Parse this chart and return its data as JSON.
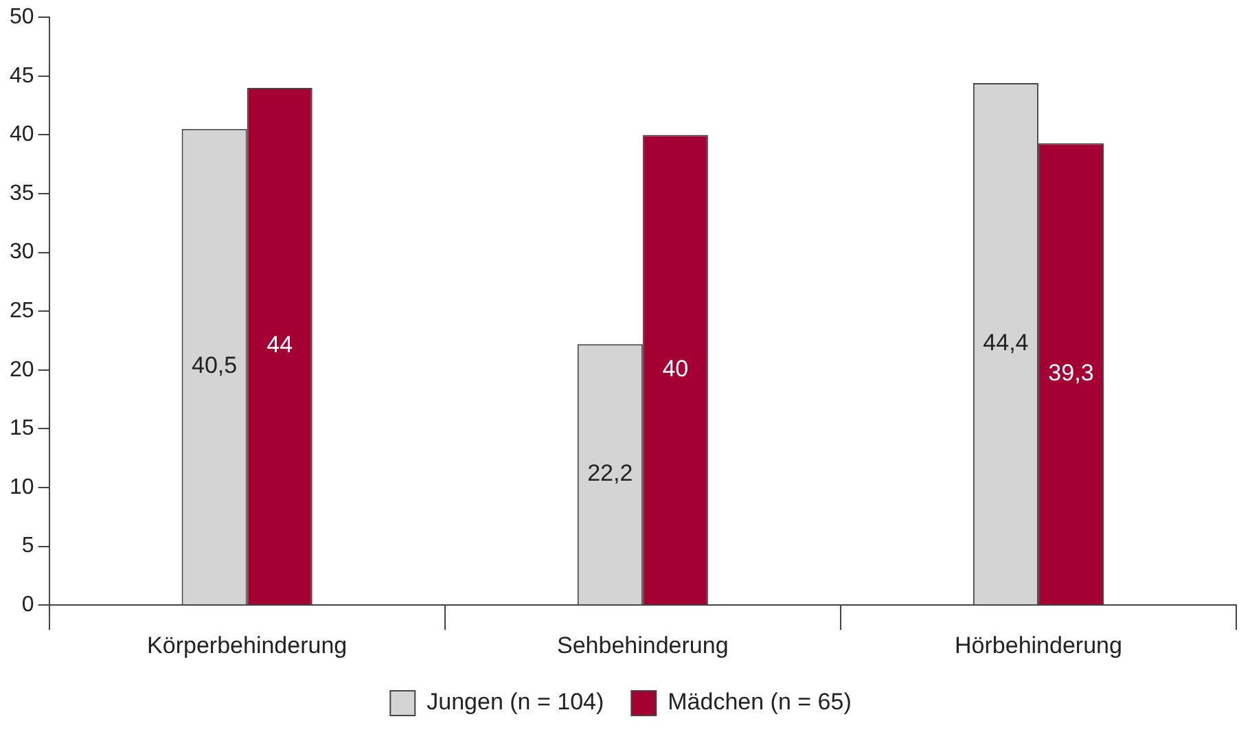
{
  "chart_data": {
    "type": "bar",
    "categories": [
      "Körperbehinderung",
      "Sehbehinderung",
      "Hörbehinderung"
    ],
    "series": [
      {
        "name": "Jungen (n = 104)",
        "color": "#d4d4d4",
        "values": [
          40.5,
          22.2,
          44.4
        ],
        "value_labels": [
          "40,5",
          "22,2",
          "44,4"
        ]
      },
      {
        "name": "Mädchen (n = 65)",
        "color": "#a50034",
        "values": [
          44,
          40,
          39.3
        ],
        "value_labels": [
          "44",
          "40",
          "39,3"
        ]
      }
    ],
    "ylim": [
      0,
      50
    ],
    "yticks": [
      0,
      5,
      10,
      15,
      20,
      25,
      30,
      35,
      40,
      45,
      50
    ],
    "grid": false,
    "legend": "bottom"
  }
}
